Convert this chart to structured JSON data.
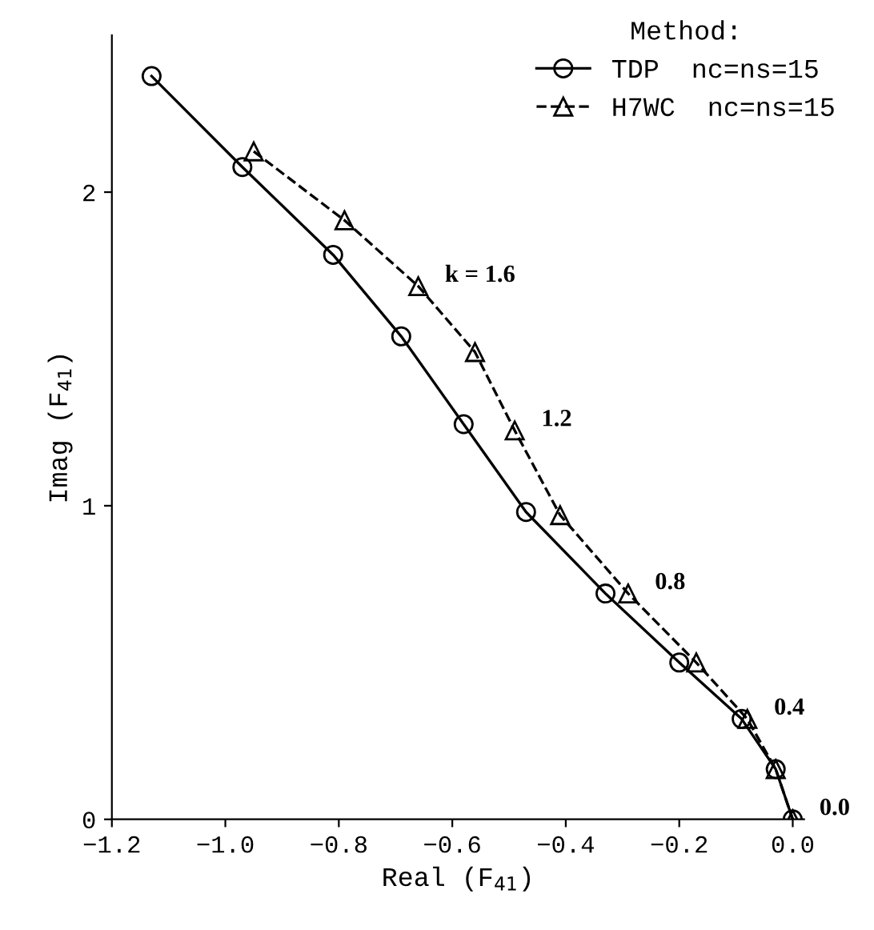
{
  "chart_data": {
    "type": "line",
    "xlabel": "Real (F$_{41}$)",
    "ylabel": "Imag (F$_{41}$)",
    "legend_title": "Method:",
    "xlim": [
      -1.2,
      0.02
    ],
    "ylim": [
      0,
      2.5
    ],
    "xticks": [
      {
        "value": -1.2,
        "label": "−1.2"
      },
      {
        "value": -1.0,
        "label": "−1.0"
      },
      {
        "value": -0.8,
        "label": "−0.8"
      },
      {
        "value": -0.6,
        "label": "−0.6"
      },
      {
        "value": -0.4,
        "label": "−0.4"
      },
      {
        "value": -0.2,
        "label": "−0.2"
      },
      {
        "value": 0.0,
        "label": "0.0"
      }
    ],
    "yticks": [
      0,
      1,
      2
    ],
    "grid": false,
    "legend": "top right",
    "series": [
      {
        "name": "TDP  nc=ns=15",
        "color": "#000000",
        "marker": "circle",
        "line_style": "solid",
        "x": [
          -1.13,
          -0.97,
          -0.81,
          -0.69,
          -0.58,
          -0.47,
          -0.33,
          -0.2,
          -0.09,
          -0.03,
          0.0
        ],
        "values": [
          2.37,
          2.08,
          1.8,
          1.54,
          1.26,
          0.98,
          0.72,
          0.5,
          0.32,
          0.16,
          0.0
        ]
      },
      {
        "name": "H7WC  nc=ns=15",
        "color": "#000000",
        "marker": "triangle",
        "line_style": "dashed",
        "x": [
          -0.95,
          -0.79,
          -0.66,
          -0.56,
          -0.49,
          -0.41,
          -0.29,
          -0.17,
          -0.08,
          -0.03,
          0.0
        ],
        "values": [
          2.13,
          1.91,
          1.7,
          1.49,
          1.24,
          0.97,
          0.72,
          0.5,
          0.32,
          0.16,
          0.0
        ]
      }
    ],
    "annotations": [
      {
        "text": "k = 1.6",
        "x": -0.66,
        "y": 1.7
      },
      {
        "text": "1.2",
        "x": -0.49,
        "y": 1.24
      },
      {
        "text": "0.8",
        "x": -0.29,
        "y": 0.72
      },
      {
        "text": "0.4",
        "x": -0.08,
        "y": 0.32
      },
      {
        "text": "0.0",
        "x": 0.0,
        "y": 0.0
      }
    ]
  }
}
